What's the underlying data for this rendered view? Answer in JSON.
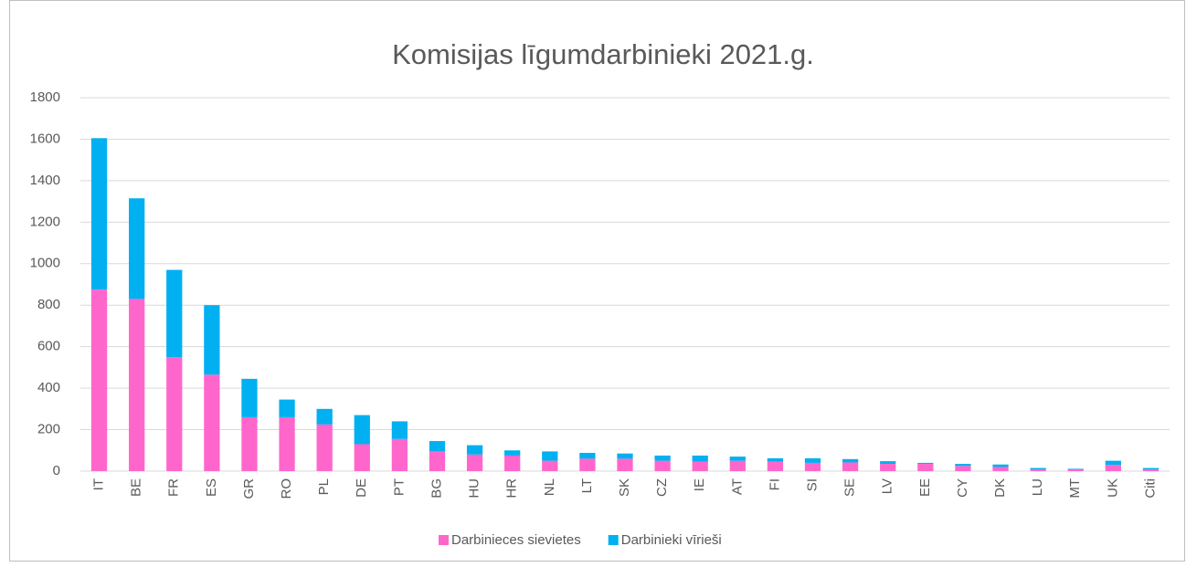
{
  "chart_data": {
    "type": "stacked_bar",
    "title": "Komisijas līgumdarbinieki 2021.g.",
    "categories": [
      "IT",
      "BE",
      "FR",
      "ES",
      "GR",
      "RO",
      "PL",
      "DE",
      "PT",
      "BG",
      "HU",
      "HR",
      "NL",
      "LT",
      "SK",
      "CZ",
      "IE",
      "AT",
      "FI",
      "SI",
      "SE",
      "LV",
      "EE",
      "CY",
      "DK",
      "LU",
      "MT",
      "UK",
      "Citi"
    ],
    "series": [
      {
        "name": "Darbinieces sievietes",
        "color": "#ff66cc",
        "values": [
          875,
          830,
          550,
          465,
          260,
          260,
          225,
          130,
          155,
          95,
          80,
          75,
          50,
          60,
          60,
          50,
          45,
          50,
          45,
          40,
          42,
          35,
          35,
          25,
          20,
          8,
          10,
          30,
          8
        ]
      },
      {
        "name": "Darbinieki vīrieši",
        "color": "#00b0f0",
        "values": [
          730,
          485,
          420,
          335,
          185,
          85,
          75,
          140,
          85,
          50,
          45,
          25,
          45,
          28,
          25,
          25,
          30,
          20,
          17,
          22,
          16,
          13,
          5,
          10,
          12,
          7,
          2,
          20,
          7
        ]
      }
    ],
    "ylim": [
      0,
      1800
    ],
    "yticks": [
      0,
      200,
      400,
      600,
      800,
      1000,
      1200,
      1400,
      1600,
      1800
    ],
    "grid": true,
    "legend": "bottom"
  }
}
